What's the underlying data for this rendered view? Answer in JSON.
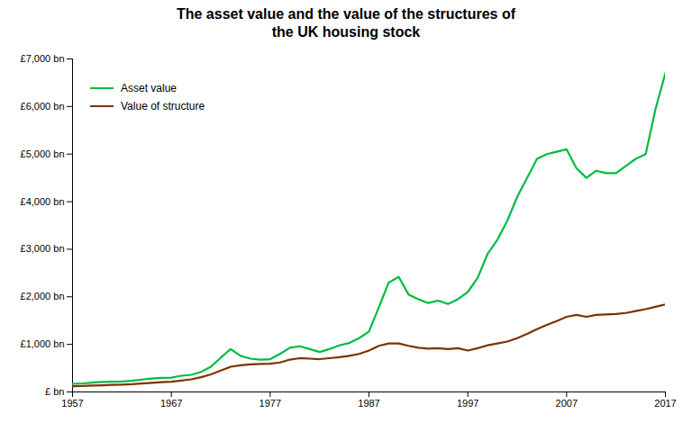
{
  "chart_data": {
    "type": "line",
    "title": "The asset value and the value of the structures of\nthe UK housing stock",
    "x": [
      1957,
      1958,
      1959,
      1960,
      1961,
      1962,
      1963,
      1964,
      1965,
      1966,
      1967,
      1968,
      1969,
      1970,
      1971,
      1972,
      1973,
      1974,
      1975,
      1976,
      1977,
      1978,
      1979,
      1980,
      1981,
      1982,
      1983,
      1984,
      1985,
      1986,
      1987,
      1988,
      1989,
      1990,
      1991,
      1992,
      1993,
      1994,
      1995,
      1996,
      1997,
      1998,
      1999,
      2000,
      2001,
      2002,
      2003,
      2004,
      2005,
      2006,
      2007,
      2008,
      2009,
      2010,
      2011,
      2012,
      2013,
      2014,
      2015,
      2016,
      2017
    ],
    "series": [
      {
        "name": "Asset value",
        "color": "#00bb44",
        "values": [
          170,
          180,
          195,
          210,
          215,
          220,
          235,
          260,
          280,
          295,
          300,
          340,
          360,
          420,
          530,
          720,
          900,
          760,
          700,
          680,
          690,
          800,
          930,
          960,
          900,
          840,
          900,
          980,
          1030,
          1130,
          1270,
          1780,
          2300,
          2420,
          2050,
          1950,
          1870,
          1920,
          1850,
          1950,
          2100,
          2400,
          2900,
          3200,
          3600,
          4100,
          4500,
          4900,
          5000,
          5050,
          5100,
          4700,
          4500,
          4650,
          4600,
          4600,
          4750,
          4900,
          5000,
          5950,
          6700
        ]
      },
      {
        "name": "Value of structure",
        "color": "#7B3300",
        "values": [
          120,
          125,
          133,
          140,
          148,
          155,
          163,
          178,
          192,
          205,
          215,
          240,
          265,
          310,
          370,
          450,
          530,
          560,
          580,
          590,
          595,
          620,
          680,
          710,
          700,
          690,
          710,
          730,
          760,
          800,
          870,
          970,
          1020,
          1020,
          970,
          930,
          910,
          920,
          900,
          920,
          870,
          920,
          980,
          1020,
          1060,
          1130,
          1220,
          1320,
          1410,
          1490,
          1580,
          1620,
          1580,
          1620,
          1630,
          1640,
          1660,
          1700,
          1740,
          1790,
          1840
        ]
      }
    ],
    "xlim": [
      1957,
      2017
    ],
    "xticks": [
      1957,
      1967,
      1977,
      1987,
      1997,
      2007,
      2017
    ],
    "ylim": [
      0,
      7000
    ],
    "yticks": [
      {
        "value": 0,
        "label": "£ bn"
      },
      {
        "value": 1000,
        "label": "£1,000 bn"
      },
      {
        "value": 2000,
        "label": "£2,000 bn"
      },
      {
        "value": 3000,
        "label": "£3,000 bn"
      },
      {
        "value": 4000,
        "label": "£4,000 bn"
      },
      {
        "value": 5000,
        "label": "£5,000 bn"
      },
      {
        "value": 6000,
        "label": "£6,000 bn"
      },
      {
        "value": 7000,
        "label": "£7,000 bn"
      }
    ],
    "grid": false,
    "legend": "upper left"
  }
}
